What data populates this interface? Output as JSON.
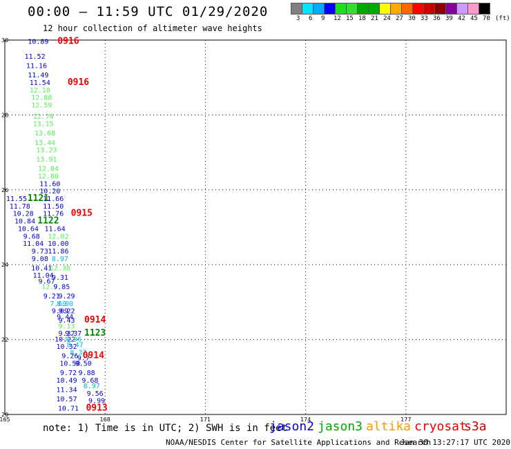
{
  "header": {
    "title": "00:00 – 11:59 UTC 01/29/2020",
    "subtitle": "12 hour collection of altimeter wave heights"
  },
  "legend": {
    "colors": [
      "#808080",
      "#00e5ff",
      "#00aaff",
      "#0000ff",
      "#1be01b",
      "#33dd33",
      "#00aa00",
      "#00aa00",
      "#ffff00",
      "#ffaa00",
      "#ff6600",
      "#ff0000",
      "#cc0000",
      "#8b0000",
      "#880099",
      "#cc99ff",
      "#ff99cc",
      "#000000"
    ],
    "labels": [
      "3",
      "6",
      "9",
      "12",
      "15",
      "18",
      "21",
      "24",
      "27",
      "30",
      "33",
      "36",
      "39",
      "42",
      "45",
      "70",
      "(ft)"
    ]
  },
  "chart_data": {
    "type": "scatter",
    "xlim": [
      165,
      180
    ],
    "ylim": [
      20,
      30
    ],
    "x_ticks": [
      "165",
      "168",
      "171",
      "174",
      "177"
    ],
    "y_ticks": [
      "20",
      "22",
      "24",
      "26",
      "28",
      "30"
    ],
    "grid": true,
    "points": [
      {
        "x": 166.0,
        "y": 29.9,
        "label": "10.89",
        "color": "#0000cc"
      },
      {
        "x": 166.9,
        "y": 29.9,
        "label": "0916",
        "color": "#ee0000"
      },
      {
        "x": 165.9,
        "y": 29.5,
        "label": "11.52",
        "color": "#0000cc"
      },
      {
        "x": 165.95,
        "y": 29.25,
        "label": "11.16",
        "color": "#0000cc"
      },
      {
        "x": 166.0,
        "y": 29.0,
        "label": "11.49",
        "color": "#0000cc"
      },
      {
        "x": 166.05,
        "y": 28.8,
        "label": "11.54",
        "color": "#0000cc"
      },
      {
        "x": 167.2,
        "y": 28.8,
        "label": "0916",
        "color": "#ee0000"
      },
      {
        "x": 166.05,
        "y": 28.6,
        "label": "12.10",
        "color": "#55ee55"
      },
      {
        "x": 166.1,
        "y": 28.4,
        "label": "12.88",
        "color": "#55ee55"
      },
      {
        "x": 166.1,
        "y": 28.2,
        "label": "12.59",
        "color": "#55ee55"
      },
      {
        "x": 166.15,
        "y": 27.9,
        "label": "12.74",
        "color": "#55ee55"
      },
      {
        "x": 166.15,
        "y": 27.7,
        "label": "13.15",
        "color": "#55ee55"
      },
      {
        "x": 166.2,
        "y": 27.45,
        "label": "13.68",
        "color": "#55ee55"
      },
      {
        "x": 166.2,
        "y": 27.2,
        "label": "13.44",
        "color": "#55ee55"
      },
      {
        "x": 166.25,
        "y": 27.0,
        "label": "13.23",
        "color": "#55ee55"
      },
      {
        "x": 166.25,
        "y": 26.75,
        "label": "13.91",
        "color": "#55ee55"
      },
      {
        "x": 166.3,
        "y": 26.5,
        "label": "12.04",
        "color": "#55ee55"
      },
      {
        "x": 166.3,
        "y": 26.3,
        "label": "12.80",
        "color": "#55ee55"
      },
      {
        "x": 166.35,
        "y": 26.1,
        "label": "11.60",
        "color": "#0000cc"
      },
      {
        "x": 166.35,
        "y": 25.9,
        "label": "10.20",
        "color": "#0000cc"
      },
      {
        "x": 165.35,
        "y": 25.7,
        "label": "11.55",
        "color": "#0000cc"
      },
      {
        "x": 166.0,
        "y": 25.7,
        "label": "1121",
        "color": "#008800"
      },
      {
        "x": 166.45,
        "y": 25.7,
        "label": "11.66",
        "color": "#0000cc"
      },
      {
        "x": 165.45,
        "y": 25.5,
        "label": "11.78",
        "color": "#0000cc"
      },
      {
        "x": 166.45,
        "y": 25.5,
        "label": "11.50",
        "color": "#0000cc"
      },
      {
        "x": 165.55,
        "y": 25.3,
        "label": "10.28",
        "color": "#0000cc"
      },
      {
        "x": 166.45,
        "y": 25.3,
        "label": "11.76",
        "color": "#0000cc"
      },
      {
        "x": 167.3,
        "y": 25.3,
        "label": "0915",
        "color": "#ee0000"
      },
      {
        "x": 165.6,
        "y": 25.1,
        "label": "10.84",
        "color": "#0000cc"
      },
      {
        "x": 166.3,
        "y": 25.1,
        "label": "1122",
        "color": "#008800"
      },
      {
        "x": 165.7,
        "y": 24.9,
        "label": "10.64",
        "color": "#0000cc"
      },
      {
        "x": 166.5,
        "y": 24.9,
        "label": "11.64",
        "color": "#0000cc"
      },
      {
        "x": 165.8,
        "y": 24.7,
        "label": "9.68",
        "color": "#0000cc"
      },
      {
        "x": 166.6,
        "y": 24.7,
        "label": "12.02",
        "color": "#55ee55"
      },
      {
        "x": 165.85,
        "y": 24.5,
        "label": "11.04",
        "color": "#0000cc"
      },
      {
        "x": 166.6,
        "y": 24.5,
        "label": "10.00",
        "color": "#0000cc"
      },
      {
        "x": 166.05,
        "y": 24.3,
        "label": "9.73",
        "color": "#0000cc"
      },
      {
        "x": 166.6,
        "y": 24.3,
        "label": "11.86",
        "color": "#0000cc"
      },
      {
        "x": 166.05,
        "y": 24.1,
        "label": "9.08",
        "color": "#0000cc"
      },
      {
        "x": 166.65,
        "y": 24.1,
        "label": "8.97",
        "color": "#00bbdd"
      },
      {
        "x": 166.1,
        "y": 23.85,
        "label": "10.41",
        "color": "#0000cc"
      },
      {
        "x": 166.65,
        "y": 23.85,
        "label": "12.38",
        "color": "#55ee55"
      },
      {
        "x": 166.15,
        "y": 23.65,
        "label": "11.04",
        "color": "#0000cc"
      },
      {
        "x": 166.65,
        "y": 23.6,
        "label": "9.31",
        "color": "#0000cc"
      },
      {
        "x": 166.25,
        "y": 23.5,
        "label": "9.67",
        "color": "#0000cc"
      },
      {
        "x": 166.35,
        "y": 23.35,
        "label": "12.7",
        "color": "#55ee55"
      },
      {
        "x": 166.7,
        "y": 23.35,
        "label": "9.85",
        "color": "#0000cc"
      },
      {
        "x": 166.4,
        "y": 23.1,
        "label": "9.21",
        "color": "#0000cc"
      },
      {
        "x": 166.85,
        "y": 23.1,
        "label": "9.29",
        "color": "#0000cc"
      },
      {
        "x": 166.6,
        "y": 22.9,
        "label": "7.69",
        "color": "#00bbdd"
      },
      {
        "x": 166.8,
        "y": 22.9,
        "label": "8.90",
        "color": "#00bbdd"
      },
      {
        "x": 166.65,
        "y": 22.7,
        "label": "9.09",
        "color": "#0000cc"
      },
      {
        "x": 166.85,
        "y": 22.7,
        "label": "9.22",
        "color": "#0000cc"
      },
      {
        "x": 166.8,
        "y": 22.55,
        "label": "9.44",
        "color": "#0000cc"
      },
      {
        "x": 166.85,
        "y": 22.45,
        "label": "9.43",
        "color": "#0000cc"
      },
      {
        "x": 167.7,
        "y": 22.45,
        "label": "0914",
        "color": "#ee0000"
      },
      {
        "x": 166.85,
        "y": 22.3,
        "label": "9.13",
        "color": "#55ee55"
      },
      {
        "x": 166.85,
        "y": 22.1,
        "label": "9.37",
        "color": "#0000cc"
      },
      {
        "x": 167.05,
        "y": 22.1,
        "label": "9.37",
        "color": "#0000cc"
      },
      {
        "x": 167.7,
        "y": 22.1,
        "label": "1123",
        "color": "#008800"
      },
      {
        "x": 166.8,
        "y": 21.95,
        "label": "10.22",
        "color": "#0000cc"
      },
      {
        "x": 167.05,
        "y": 21.95,
        "label": "9.96",
        "color": "#00bbdd"
      },
      {
        "x": 166.85,
        "y": 21.75,
        "label": "10.32",
        "color": "#0000cc"
      },
      {
        "x": 167.1,
        "y": 21.8,
        "label": "8.47",
        "color": "#00bbdd"
      },
      {
        "x": 167.2,
        "y": 21.6,
        "label": "8.37",
        "color": "#00bbdd"
      },
      {
        "x": 166.95,
        "y": 21.5,
        "label": "9.26",
        "color": "#0000cc"
      },
      {
        "x": 167.35,
        "y": 21.45,
        "label": "9.7",
        "color": "#0000cc"
      },
      {
        "x": 167.65,
        "y": 21.5,
        "label": "0914",
        "color": "#ee0000"
      },
      {
        "x": 166.95,
        "y": 21.3,
        "label": "10.50",
        "color": "#0000cc"
      },
      {
        "x": 167.35,
        "y": 21.3,
        "label": "9.50",
        "color": "#0000cc"
      },
      {
        "x": 166.9,
        "y": 21.05,
        "label": "9.72",
        "color": "#0000cc"
      },
      {
        "x": 167.45,
        "y": 21.05,
        "label": "9.88",
        "color": "#0000cc"
      },
      {
        "x": 166.85,
        "y": 20.85,
        "label": "10.49",
        "color": "#0000cc"
      },
      {
        "x": 167.55,
        "y": 20.85,
        "label": "9.68",
        "color": "#0000cc"
      },
      {
        "x": 167.6,
        "y": 20.7,
        "label": "8.97",
        "color": "#00bbdd"
      },
      {
        "x": 166.85,
        "y": 20.6,
        "label": "11.34",
        "color": "#0000cc"
      },
      {
        "x": 167.7,
        "y": 20.5,
        "label": "9.56",
        "color": "#0000cc"
      },
      {
        "x": 166.85,
        "y": 20.35,
        "label": "10.57",
        "color": "#0000cc"
      },
      {
        "x": 167.75,
        "y": 20.3,
        "label": "9.99",
        "color": "#0000cc"
      },
      {
        "x": 166.9,
        "y": 20.1,
        "label": "10.71",
        "color": "#0000cc"
      },
      {
        "x": 167.75,
        "y": 20.1,
        "label": "0913",
        "color": "#ee0000"
      }
    ]
  },
  "note": "note: 1) Time is in UTC; 2) SWH is in feet",
  "satellites": [
    {
      "name": "jason2",
      "color": "#0000ee"
    },
    {
      "name": "jason3",
      "color": "#00aa00"
    },
    {
      "name": "altika",
      "color": "#ff9900"
    },
    {
      "name": "cryosat",
      "color": "#ee0000"
    },
    {
      "name": "s3a",
      "color": "#cc0000"
    }
  ],
  "footer": {
    "credit": "NOAA/NESDIS Center for Satellite Applications and Research",
    "timestamp": "Jan 30 13:27:17 UTC 2020"
  }
}
